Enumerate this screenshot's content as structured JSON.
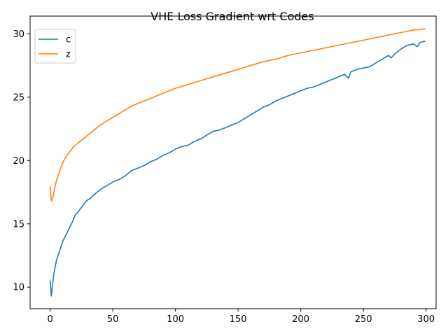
{
  "chart_data": {
    "type": "line",
    "title": "VHE Loss Gradient wrt Codes",
    "xlabel": "",
    "ylabel": "",
    "xlim": [
      -16,
      308
    ],
    "ylim": [
      8.3,
      31.4
    ],
    "xticks": [
      0,
      50,
      100,
      150,
      200,
      250,
      300
    ],
    "yticks": [
      10,
      15,
      20,
      25,
      30
    ],
    "grid": false,
    "legend_position": "top-left",
    "series": [
      {
        "name": "c",
        "color": "#1f77b4",
        "x": [
          0,
          1,
          2,
          3,
          4,
          5,
          6,
          8,
          10,
          12,
          15,
          18,
          20,
          22,
          25,
          28,
          30,
          32,
          35,
          40,
          45,
          50,
          55,
          60,
          65,
          70,
          75,
          80,
          85,
          90,
          95,
          100,
          105,
          110,
          115,
          120,
          125,
          130,
          135,
          140,
          145,
          150,
          155,
          160,
          165,
          170,
          175,
          180,
          185,
          190,
          195,
          200,
          205,
          210,
          215,
          220,
          225,
          230,
          235,
          238,
          240,
          245,
          250,
          255,
          260,
          265,
          270,
          272,
          275,
          280,
          285,
          290,
          293,
          295,
          298,
          299
        ],
        "y": [
          10.5,
          9.3,
          10.3,
          11.1,
          11.6,
          12.1,
          12.4,
          13.0,
          13.6,
          14.0,
          14.6,
          15.2,
          15.7,
          15.9,
          16.3,
          16.7,
          16.9,
          17.0,
          17.3,
          17.7,
          18.0,
          18.3,
          18.5,
          18.8,
          19.2,
          19.4,
          19.6,
          19.9,
          20.1,
          20.4,
          20.6,
          20.9,
          21.1,
          21.2,
          21.5,
          21.7,
          22.0,
          22.3,
          22.4,
          22.6,
          22.8,
          23.0,
          23.3,
          23.6,
          23.9,
          24.2,
          24.4,
          24.7,
          24.9,
          25.1,
          25.3,
          25.5,
          25.7,
          25.8,
          26.0,
          26.2,
          26.4,
          26.6,
          26.8,
          26.5,
          27.0,
          27.2,
          27.3,
          27.4,
          27.7,
          28.0,
          28.3,
          28.1,
          28.4,
          28.8,
          29.1,
          29.2,
          29.0,
          29.3,
          29.4,
          29.4
        ]
      },
      {
        "name": "z",
        "color": "#ff7f0e",
        "x": [
          0,
          1,
          2,
          3,
          4,
          5,
          6,
          8,
          10,
          12,
          15,
          18,
          20,
          25,
          30,
          35,
          40,
          45,
          50,
          55,
          60,
          65,
          70,
          75,
          80,
          90,
          100,
          110,
          120,
          130,
          140,
          150,
          160,
          170,
          180,
          190,
          200,
          210,
          220,
          230,
          240,
          250,
          260,
          270,
          280,
          290,
          299
        ],
        "y": [
          17.9,
          16.8,
          17.0,
          17.5,
          18.0,
          18.4,
          18.7,
          19.3,
          19.8,
          20.2,
          20.6,
          21.0,
          21.2,
          21.6,
          22.0,
          22.4,
          22.8,
          23.1,
          23.4,
          23.7,
          24.0,
          24.3,
          24.5,
          24.7,
          24.9,
          25.3,
          25.7,
          26.0,
          26.3,
          26.6,
          26.9,
          27.2,
          27.5,
          27.8,
          28.0,
          28.3,
          28.5,
          28.7,
          28.9,
          29.1,
          29.3,
          29.5,
          29.7,
          29.9,
          30.1,
          30.3,
          30.4
        ]
      }
    ]
  }
}
